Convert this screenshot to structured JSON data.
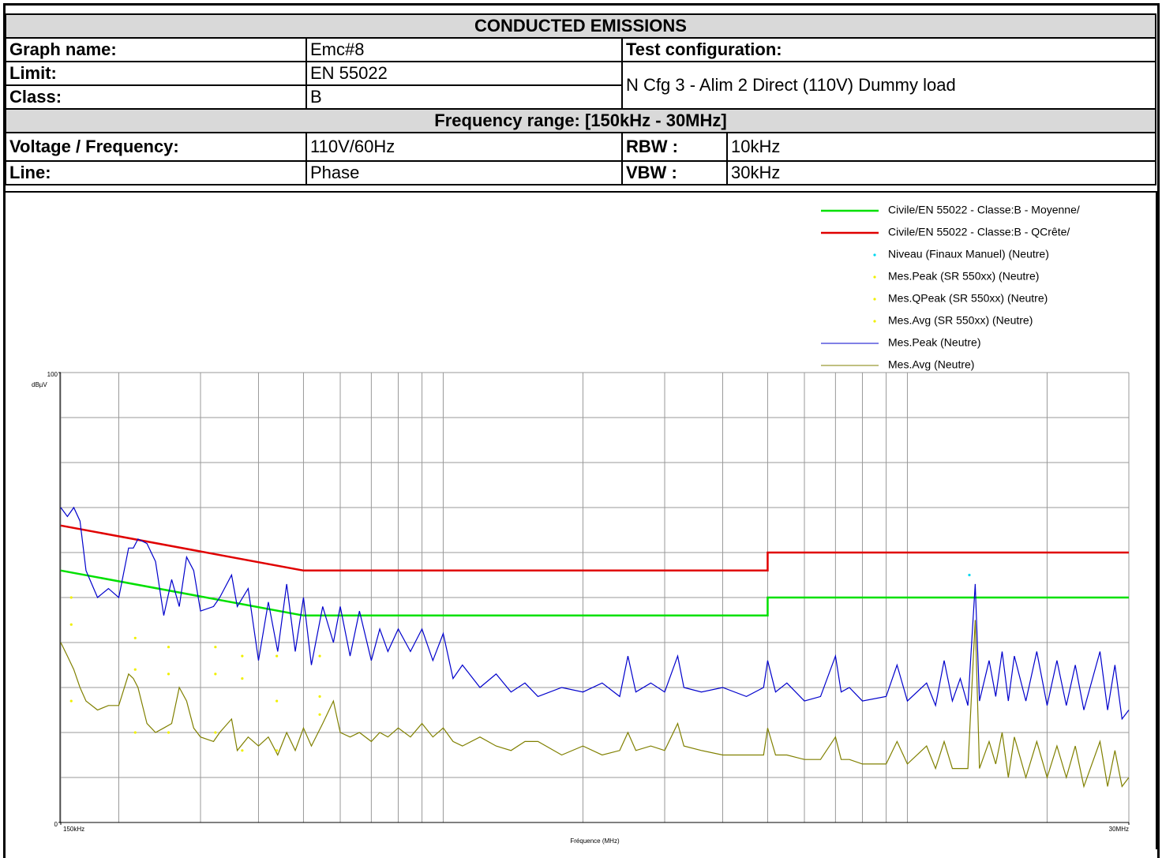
{
  "header": {
    "title": "CONDUCTED EMISSIONS",
    "graph_name": {
      "label": "Graph name:",
      "value": "Emc#8"
    },
    "test_configuration": {
      "label": "Test configuration:",
      "value": "N Cfg 3 - Alim 2 Direct (110V) Dummy load"
    },
    "limit": {
      "label": "Limit:",
      "value": "EN 55022"
    },
    "class": {
      "label": "Class:",
      "value": "B"
    },
    "frequency_range": "Frequency range:  [150kHz - 30MHz]",
    "voltage_frequency": {
      "label": "Voltage / Frequency:",
      "value": "110V/60Hz"
    },
    "rbw": {
      "label": "RBW :",
      "value": "10kHz"
    },
    "line": {
      "label": "Line:",
      "value": "Phase"
    },
    "vbw": {
      "label": "VBW :",
      "value": "30kHz"
    }
  },
  "chart_data": {
    "type": "line",
    "xlabel": "Fréquence (MHz)",
    "ylabel": "dBµV",
    "xscale": "log",
    "xlim": [
      0.15,
      30
    ],
    "ylim": [
      0,
      100
    ],
    "xticks": [
      {
        "value": 0.15,
        "label": "150kHz"
      },
      {
        "value": 30,
        "label": "30MHz"
      }
    ],
    "yticks": [
      0,
      100
    ],
    "xgrid": [
      0.15,
      0.2,
      0.3,
      0.4,
      0.5,
      0.6,
      0.7,
      0.8,
      0.9,
      1,
      2,
      3,
      4,
      5,
      6,
      7,
      8,
      9,
      10,
      20,
      30
    ],
    "ygrid": [
      0,
      10,
      20,
      30,
      40,
      50,
      60,
      70,
      80,
      90,
      100
    ],
    "series": [
      {
        "name": "Civile/EN 55022 - Classe:B - Moyenne/",
        "color": "#00e000",
        "kind": "line",
        "x": [
          0.15,
          0.5,
          5,
          5,
          30
        ],
        "values": [
          56,
          46,
          46,
          50,
          50
        ]
      },
      {
        "name": "Civile/EN 55022 - Classe:B - QCrête/",
        "color": "#e00000",
        "kind": "line",
        "x": [
          0.15,
          0.5,
          5,
          5,
          30
        ],
        "values": [
          66,
          56,
          56,
          60,
          60
        ]
      },
      {
        "name": "Niveau (Finaux Manuel) (Neutre)",
        "color": "#00d8f0",
        "kind": "marker",
        "x": [
          13.6
        ],
        "values": [
          55
        ]
      },
      {
        "name": "Mes.Peak (SR 550xx) (Neutre)",
        "color": "#f0f000",
        "kind": "marker",
        "x": [
          0.158,
          0.217,
          0.256,
          0.323,
          0.369,
          0.438,
          0.542
        ],
        "values": [
          50,
          41,
          39,
          39,
          37,
          37,
          37
        ]
      },
      {
        "name": "Mes.QPeak (SR 550xx) (Neutre)",
        "color": "#f0f000",
        "kind": "marker",
        "x": [
          0.158,
          0.217,
          0.256,
          0.323,
          0.369,
          0.438,
          0.542
        ],
        "values": [
          44,
          34,
          33,
          33,
          32,
          27,
          28
        ]
      },
      {
        "name": "Mes.Avg (SR 550xx) (Neutre)",
        "color": "#f0f000",
        "kind": "marker",
        "x": [
          0.158,
          0.217,
          0.256,
          0.323,
          0.369,
          0.438,
          0.542
        ],
        "values": [
          27,
          20,
          20,
          20,
          16,
          16,
          24
        ]
      },
      {
        "name": "Mes.Peak (Neutre)",
        "color": "#0000cc",
        "kind": "line",
        "x": [
          0.15,
          0.155,
          0.16,
          0.165,
          0.17,
          0.18,
          0.19,
          0.2,
          0.21,
          0.215,
          0.22,
          0.23,
          0.24,
          0.25,
          0.26,
          0.27,
          0.28,
          0.29,
          0.3,
          0.32,
          0.33,
          0.35,
          0.36,
          0.38,
          0.4,
          0.42,
          0.44,
          0.46,
          0.48,
          0.5,
          0.52,
          0.55,
          0.58,
          0.6,
          0.63,
          0.66,
          0.7,
          0.73,
          0.76,
          0.8,
          0.85,
          0.9,
          0.95,
          1.0,
          1.05,
          1.1,
          1.2,
          1.3,
          1.4,
          1.5,
          1.6,
          1.8,
          2.0,
          2.2,
          2.4,
          2.5,
          2.6,
          2.8,
          3.0,
          3.2,
          3.3,
          3.6,
          4.0,
          4.5,
          4.9,
          5.0,
          5.2,
          5.5,
          6.0,
          6.5,
          7.0,
          7.2,
          7.5,
          8.0,
          9.0,
          9.5,
          10,
          11,
          11.5,
          12,
          12.5,
          13,
          13.5,
          14,
          14.3,
          15,
          15.5,
          16,
          16.5,
          17,
          18,
          19,
          20,
          21,
          22,
          23,
          24,
          26,
          27,
          28,
          29,
          30
        ],
        "values": [
          70,
          68,
          70,
          67,
          56,
          50,
          52,
          50,
          61,
          61,
          63,
          62,
          58,
          46,
          54,
          48,
          59,
          56,
          47,
          48,
          50,
          55,
          48,
          52,
          36,
          49,
          38,
          53,
          38,
          50,
          35,
          48,
          40,
          48,
          37,
          47,
          36,
          43,
          38,
          43,
          38,
          43,
          36,
          42,
          32,
          35,
          30,
          33,
          29,
          31,
          28,
          30,
          29,
          31,
          28,
          37,
          29,
          31,
          29,
          37,
          30,
          29,
          30,
          28,
          30,
          36,
          29,
          31,
          27,
          28,
          37,
          29,
          30,
          27,
          28,
          35,
          27,
          31,
          26,
          36,
          27,
          32,
          26,
          53,
          27,
          36,
          28,
          38,
          27,
          37,
          27,
          38,
          26,
          36,
          26,
          35,
          25,
          38,
          25,
          35,
          23,
          25
        ]
      },
      {
        "name": "Mes.Avg (Neutre)",
        "color": "#808000",
        "kind": "line",
        "x": [
          0.15,
          0.155,
          0.16,
          0.165,
          0.17,
          0.18,
          0.19,
          0.2,
          0.21,
          0.215,
          0.22,
          0.23,
          0.24,
          0.25,
          0.26,
          0.27,
          0.28,
          0.29,
          0.3,
          0.32,
          0.33,
          0.35,
          0.36,
          0.38,
          0.4,
          0.42,
          0.44,
          0.46,
          0.48,
          0.5,
          0.52,
          0.55,
          0.58,
          0.6,
          0.63,
          0.66,
          0.7,
          0.73,
          0.76,
          0.8,
          0.85,
          0.9,
          0.95,
          1.0,
          1.05,
          1.1,
          1.2,
          1.3,
          1.4,
          1.5,
          1.6,
          1.8,
          2.0,
          2.2,
          2.4,
          2.5,
          2.6,
          2.8,
          3.0,
          3.2,
          3.3,
          3.6,
          4.0,
          4.5,
          4.9,
          5.0,
          5.2,
          5.5,
          6.0,
          6.5,
          7.0,
          7.2,
          7.5,
          8.0,
          9.0,
          9.5,
          10,
          11,
          11.5,
          12,
          12.5,
          13,
          13.5,
          14,
          14.3,
          15,
          15.5,
          16,
          16.5,
          17,
          18,
          19,
          20,
          21,
          22,
          23,
          24,
          26,
          27,
          28,
          29,
          30
        ],
        "values": [
          40,
          37,
          34,
          30,
          27,
          25,
          26,
          26,
          33,
          32,
          30,
          22,
          20,
          21,
          22,
          30,
          27,
          21,
          19,
          18,
          20,
          23,
          16,
          19,
          17,
          19,
          15,
          20,
          16,
          21,
          17,
          22,
          27,
          20,
          19,
          20,
          18,
          20,
          19,
          21,
          19,
          22,
          19,
          21,
          18,
          17,
          19,
          17,
          16,
          18,
          18,
          15,
          17,
          15,
          16,
          20,
          16,
          17,
          16,
          22,
          17,
          16,
          15,
          15,
          15,
          21,
          15,
          15,
          14,
          14,
          19,
          14,
          14,
          13,
          13,
          18,
          13,
          17,
          12,
          18,
          12,
          12,
          12,
          45,
          12,
          18,
          13,
          20,
          10,
          19,
          10,
          18,
          10,
          17,
          10,
          17,
          8,
          18,
          8,
          16,
          8,
          10
        ]
      }
    ]
  }
}
